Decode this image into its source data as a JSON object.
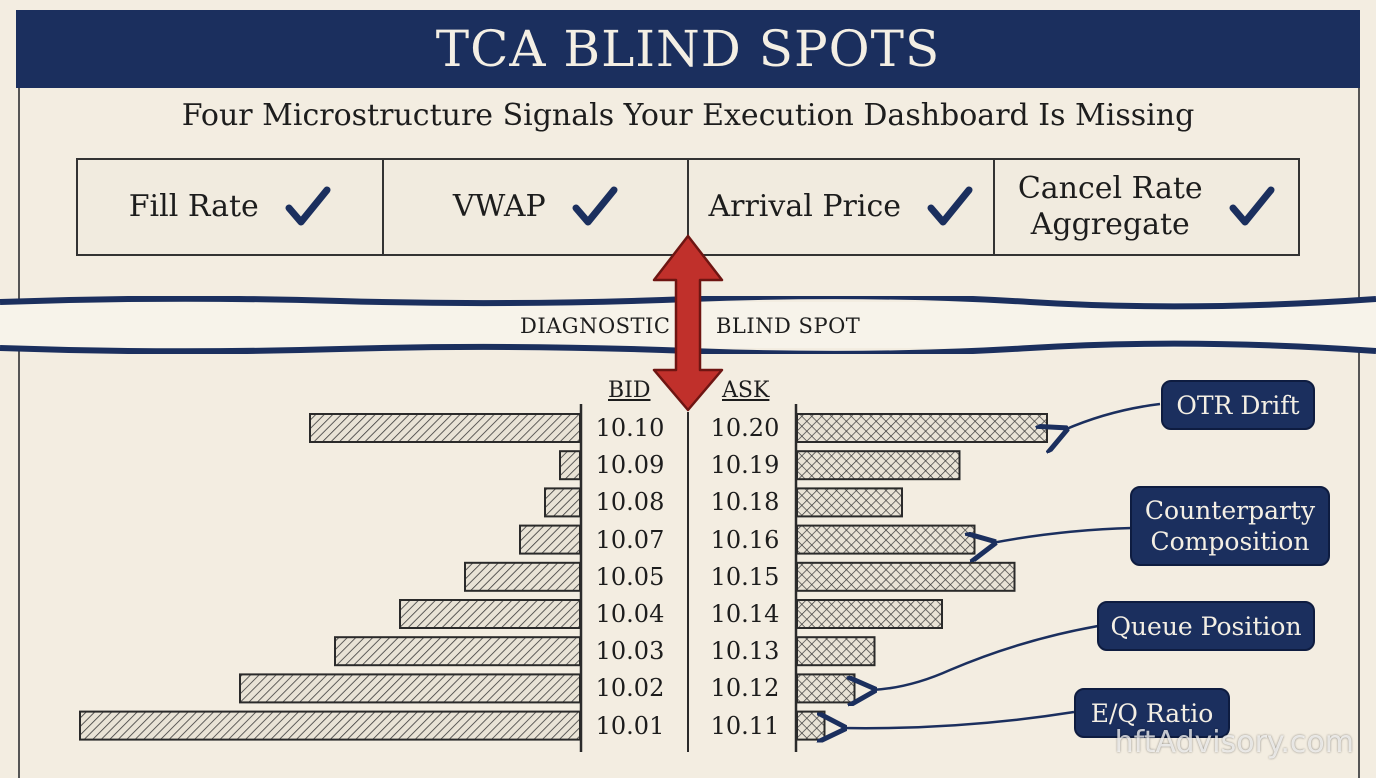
{
  "title": "TCA BLIND SPOTS",
  "subtitle": "Four Microstructure Signals Your Execution Dashboard Is Missing",
  "metrics": [
    {
      "label": "Fill Rate",
      "icon": "check-icon"
    },
    {
      "label": "VWAP",
      "icon": "check-icon"
    },
    {
      "label": "Arrival Price",
      "icon": "check-icon"
    },
    {
      "label": "Cancel Rate\nAggregate",
      "icon": "check-icon"
    }
  ],
  "band": {
    "left_label": "DIAGNOSTIC",
    "right_label": "BLIND SPOT"
  },
  "book": {
    "bid_header": "BID",
    "ask_header": "ASK",
    "bid_prices": [
      "10.10",
      "10.09",
      "10.08",
      "10.07",
      "10.05",
      "10.04",
      "10.03",
      "10.02",
      "10.01"
    ],
    "ask_prices": [
      "10.20",
      "10.19",
      "10.18",
      "10.16",
      "10.15",
      "10.14",
      "10.13",
      "10.12",
      "10.11"
    ]
  },
  "chart_data": {
    "type": "bar",
    "bid_sizes_relative": [
      0.54,
      0.04,
      0.07,
      0.12,
      0.23,
      0.36,
      0.49,
      0.68,
      1.0
    ],
    "ask_sizes_relative": [
      1.0,
      0.65,
      0.42,
      0.71,
      0.87,
      0.58,
      0.31,
      0.23,
      0.11
    ]
  },
  "callouts": [
    {
      "label": "OTR Drift"
    },
    {
      "label": "Counterparty\nComposition"
    },
    {
      "label": "Queue Position"
    },
    {
      "label": "E/Q Ratio"
    }
  ],
  "watermark": "hftAdvisory.com",
  "colors": {
    "navy": "#1b2f5e",
    "arrow_red": "#c0302b",
    "paper": "#f3ede1"
  }
}
